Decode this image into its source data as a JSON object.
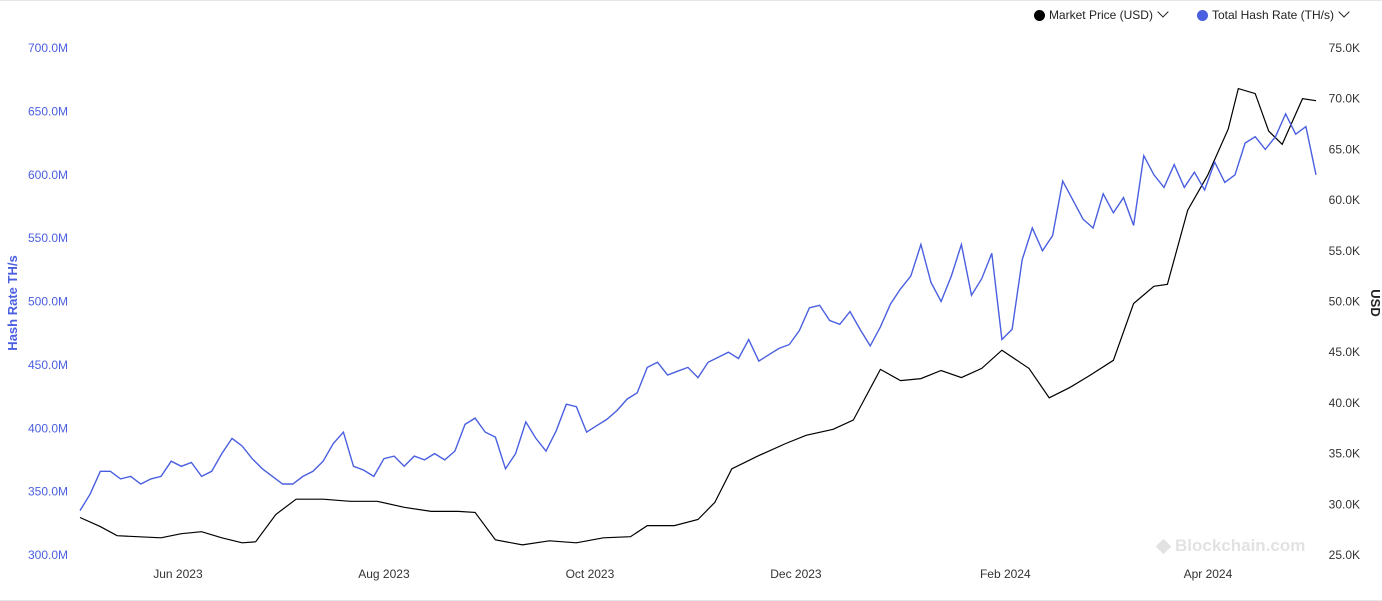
{
  "legend": {
    "items": [
      {
        "label": "Market Price (USD)",
        "color": "#000000"
      },
      {
        "label": "Total Hash Rate (TH/s)",
        "color": "#4a5fe0"
      }
    ]
  },
  "watermark": {
    "text": "Blockchain.com",
    "icon": "blockchain-logo-icon"
  },
  "chart_data": {
    "type": "line",
    "xlabel": "",
    "x_ticks": [
      "Jun 2023",
      "Aug 2023",
      "Oct 2023",
      "Dec 2023",
      "Feb 2024",
      "Apr 2024"
    ],
    "x_tick_dates": [
      "2023-06-01",
      "2023-08-01",
      "2023-10-01",
      "2023-12-01",
      "2024-02-01",
      "2024-04-01"
    ],
    "xlim": [
      "2023-05-03",
      "2024-05-03"
    ],
    "y_left": {
      "label": "Hash Rate TH/s",
      "ticks": [
        "300.0M",
        "350.0M",
        "400.0M",
        "450.0M",
        "500.0M",
        "550.0M",
        "600.0M",
        "650.0M",
        "700.0M"
      ],
      "lim": [
        300000000,
        700000000
      ],
      "color": "#4a5fe0"
    },
    "y_right": {
      "label": "USD",
      "ticks": [
        "25.0K",
        "30.0K",
        "35.0K",
        "40.0K",
        "45.0K",
        "50.0K",
        "55.0K",
        "60.0K",
        "65.0K",
        "70.0K",
        "75.0K"
      ],
      "lim": [
        25000,
        75000
      ],
      "color": "#333333"
    },
    "grid": false,
    "legend_position": "top-right",
    "series": [
      {
        "name": "Total Hash Rate (TH/s)",
        "axis": "left",
        "color": "#4a5fe0",
        "points": [
          [
            "2023-05-03",
            335000000
          ],
          [
            "2023-05-06",
            348000000
          ],
          [
            "2023-05-09",
            366000000
          ],
          [
            "2023-05-12",
            366000000
          ],
          [
            "2023-05-15",
            360000000
          ],
          [
            "2023-05-18",
            362000000
          ],
          [
            "2023-05-21",
            356000000
          ],
          [
            "2023-05-24",
            360000000
          ],
          [
            "2023-05-27",
            362000000
          ],
          [
            "2023-05-30",
            374000000
          ],
          [
            "2023-06-02",
            370000000
          ],
          [
            "2023-06-05",
            373000000
          ],
          [
            "2023-06-08",
            362000000
          ],
          [
            "2023-06-11",
            366000000
          ],
          [
            "2023-06-14",
            380000000
          ],
          [
            "2023-06-17",
            392000000
          ],
          [
            "2023-06-20",
            386000000
          ],
          [
            "2023-06-23",
            376000000
          ],
          [
            "2023-06-26",
            368000000
          ],
          [
            "2023-06-29",
            362000000
          ],
          [
            "2023-07-02",
            356000000
          ],
          [
            "2023-07-05",
            356000000
          ],
          [
            "2023-07-08",
            362000000
          ],
          [
            "2023-07-11",
            366000000
          ],
          [
            "2023-07-14",
            374000000
          ],
          [
            "2023-07-17",
            388000000
          ],
          [
            "2023-07-20",
            397000000
          ],
          [
            "2023-07-23",
            370000000
          ],
          [
            "2023-07-26",
            367000000
          ],
          [
            "2023-07-29",
            362000000
          ],
          [
            "2023-08-01",
            376000000
          ],
          [
            "2023-08-04",
            378000000
          ],
          [
            "2023-08-07",
            370000000
          ],
          [
            "2023-08-10",
            378000000
          ],
          [
            "2023-08-13",
            375000000
          ],
          [
            "2023-08-16",
            380000000
          ],
          [
            "2023-08-19",
            375000000
          ],
          [
            "2023-08-22",
            382000000
          ],
          [
            "2023-08-25",
            403000000
          ],
          [
            "2023-08-28",
            408000000
          ],
          [
            "2023-08-31",
            397000000
          ],
          [
            "2023-09-03",
            393000000
          ],
          [
            "2023-09-06",
            368000000
          ],
          [
            "2023-09-09",
            380000000
          ],
          [
            "2023-09-12",
            405000000
          ],
          [
            "2023-09-15",
            392000000
          ],
          [
            "2023-09-18",
            382000000
          ],
          [
            "2023-09-21",
            398000000
          ],
          [
            "2023-09-24",
            419000000
          ],
          [
            "2023-09-27",
            417000000
          ],
          [
            "2023-09-30",
            397000000
          ],
          [
            "2023-10-03",
            402000000
          ],
          [
            "2023-10-06",
            407000000
          ],
          [
            "2023-10-09",
            414000000
          ],
          [
            "2023-10-12",
            423000000
          ],
          [
            "2023-10-15",
            428000000
          ],
          [
            "2023-10-18",
            448000000
          ],
          [
            "2023-10-21",
            452000000
          ],
          [
            "2023-10-24",
            442000000
          ],
          [
            "2023-10-27",
            445000000
          ],
          [
            "2023-10-30",
            448000000
          ],
          [
            "2023-11-02",
            440000000
          ],
          [
            "2023-11-05",
            452000000
          ],
          [
            "2023-11-08",
            456000000
          ],
          [
            "2023-11-11",
            460000000
          ],
          [
            "2023-11-14",
            455000000
          ],
          [
            "2023-11-17",
            470000000
          ],
          [
            "2023-11-20",
            453000000
          ],
          [
            "2023-11-23",
            458000000
          ],
          [
            "2023-11-26",
            463000000
          ],
          [
            "2023-11-29",
            466000000
          ],
          [
            "2023-12-02",
            477000000
          ],
          [
            "2023-12-05",
            495000000
          ],
          [
            "2023-12-08",
            497000000
          ],
          [
            "2023-12-11",
            485000000
          ],
          [
            "2023-12-14",
            482000000
          ],
          [
            "2023-12-17",
            492000000
          ],
          [
            "2023-12-20",
            478000000
          ],
          [
            "2023-12-23",
            465000000
          ],
          [
            "2023-12-26",
            480000000
          ],
          [
            "2023-12-29",
            498000000
          ],
          [
            "2024-01-01",
            510000000
          ],
          [
            "2024-01-04",
            520000000
          ],
          [
            "2024-01-07",
            545000000
          ],
          [
            "2024-01-10",
            515000000
          ],
          [
            "2024-01-13",
            500000000
          ],
          [
            "2024-01-16",
            520000000
          ],
          [
            "2024-01-19",
            545000000
          ],
          [
            "2024-01-22",
            505000000
          ],
          [
            "2024-01-25",
            518000000
          ],
          [
            "2024-01-28",
            538000000
          ],
          [
            "2024-01-31",
            470000000
          ],
          [
            "2024-02-03",
            478000000
          ],
          [
            "2024-02-06",
            533000000
          ],
          [
            "2024-02-09",
            558000000
          ],
          [
            "2024-02-12",
            540000000
          ],
          [
            "2024-02-15",
            552000000
          ],
          [
            "2024-02-18",
            595000000
          ],
          [
            "2024-02-21",
            580000000
          ],
          [
            "2024-02-24",
            565000000
          ],
          [
            "2024-02-27",
            558000000
          ],
          [
            "2024-03-01",
            585000000
          ],
          [
            "2024-03-04",
            570000000
          ],
          [
            "2024-03-07",
            582000000
          ],
          [
            "2024-03-10",
            560000000
          ],
          [
            "2024-03-13",
            615000000
          ],
          [
            "2024-03-16",
            600000000
          ],
          [
            "2024-03-19",
            590000000
          ],
          [
            "2024-03-22",
            608000000
          ],
          [
            "2024-03-25",
            590000000
          ],
          [
            "2024-03-28",
            602000000
          ],
          [
            "2024-03-31",
            588000000
          ],
          [
            "2024-04-03",
            610000000
          ],
          [
            "2024-04-06",
            594000000
          ],
          [
            "2024-04-09",
            600000000
          ],
          [
            "2024-04-12",
            625000000
          ],
          [
            "2024-04-15",
            630000000
          ],
          [
            "2024-04-18",
            620000000
          ],
          [
            "2024-04-21",
            630000000
          ],
          [
            "2024-04-24",
            648000000
          ],
          [
            "2024-04-27",
            632000000
          ],
          [
            "2024-04-30",
            638000000
          ],
          [
            "2024-05-03",
            600000000
          ]
        ]
      },
      {
        "name": "Market Price (USD)",
        "axis": "right",
        "color": "#000000",
        "points": [
          [
            "2023-05-03",
            28700
          ],
          [
            "2023-05-09",
            27800
          ],
          [
            "2023-05-14",
            26900
          ],
          [
            "2023-05-20",
            26800
          ],
          [
            "2023-05-27",
            26700
          ],
          [
            "2023-06-02",
            27100
          ],
          [
            "2023-06-08",
            27300
          ],
          [
            "2023-06-14",
            26700
          ],
          [
            "2023-06-20",
            26200
          ],
          [
            "2023-06-24",
            26300
          ],
          [
            "2023-06-30",
            29000
          ],
          [
            "2023-07-06",
            30500
          ],
          [
            "2023-07-14",
            30500
          ],
          [
            "2023-07-22",
            30300
          ],
          [
            "2023-07-30",
            30300
          ],
          [
            "2023-08-07",
            29700
          ],
          [
            "2023-08-15",
            29300
          ],
          [
            "2023-08-23",
            29300
          ],
          [
            "2023-08-28",
            29200
          ],
          [
            "2023-09-03",
            26500
          ],
          [
            "2023-09-11",
            26000
          ],
          [
            "2023-09-19",
            26400
          ],
          [
            "2023-09-27",
            26200
          ],
          [
            "2023-10-05",
            26700
          ],
          [
            "2023-10-13",
            26800
          ],
          [
            "2023-10-18",
            27900
          ],
          [
            "2023-10-26",
            27900
          ],
          [
            "2023-11-02",
            28500
          ],
          [
            "2023-11-07",
            30200
          ],
          [
            "2023-11-12",
            33500
          ],
          [
            "2023-11-20",
            34800
          ],
          [
            "2023-11-28",
            36000
          ],
          [
            "2023-12-04",
            36800
          ],
          [
            "2023-12-12",
            37400
          ],
          [
            "2023-12-18",
            38300
          ],
          [
            "2023-12-26",
            43300
          ],
          [
            "2024-01-01",
            42200
          ],
          [
            "2024-01-07",
            42400
          ],
          [
            "2024-01-13",
            43200
          ],
          [
            "2024-01-19",
            42500
          ],
          [
            "2024-01-25",
            43400
          ],
          [
            "2024-01-31",
            45200
          ],
          [
            "2024-02-08",
            43400
          ],
          [
            "2024-02-14",
            40500
          ],
          [
            "2024-02-20",
            41500
          ],
          [
            "2024-02-26",
            42700
          ],
          [
            "2024-03-04",
            44200
          ],
          [
            "2024-03-10",
            49800
          ],
          [
            "2024-03-16",
            51500
          ],
          [
            "2024-03-20",
            51700
          ],
          [
            "2024-03-26",
            59000
          ],
          [
            "2024-04-01",
            62500
          ],
          [
            "2024-04-07",
            67000
          ],
          [
            "2024-04-10",
            71000
          ],
          [
            "2024-04-15",
            70500
          ],
          [
            "2024-04-19",
            66800
          ],
          [
            "2024-04-23",
            65500
          ],
          [
            "2024-04-29",
            70000
          ],
          [
            "2024-05-03",
            69800
          ]
        ]
      }
    ]
  }
}
